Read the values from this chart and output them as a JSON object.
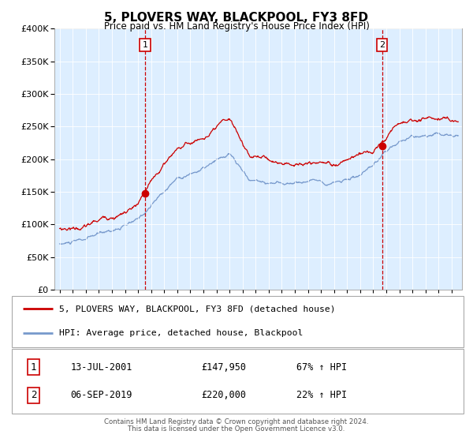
{
  "title": "5, PLOVERS WAY, BLACKPOOL, FY3 8FD",
  "subtitle": "Price paid vs. HM Land Registry's House Price Index (HPI)",
  "legend_line1": "5, PLOVERS WAY, BLACKPOOL, FY3 8FD (detached house)",
  "legend_line2": "HPI: Average price, detached house, Blackpool",
  "sale1_date": "13-JUL-2001",
  "sale1_price": "£147,950",
  "sale1_hpi": "67% ↑ HPI",
  "sale2_date": "06-SEP-2019",
  "sale2_price": "£220,000",
  "sale2_hpi": "22% ↑ HPI",
  "footer1": "Contains HM Land Registry data © Crown copyright and database right 2024.",
  "footer2": "This data is licensed under the Open Government Licence v3.0.",
  "red_color": "#cc0000",
  "blue_color": "#7799cc",
  "bg_color": "#ddeeff",
  "sale1_year": 2001.54,
  "sale2_year": 2019.68,
  "sale1_y": 147950,
  "sale2_y": 220000,
  "ylim": [
    0,
    400000
  ],
  "xlim_start": 1994.6,
  "xlim_end": 2025.8
}
